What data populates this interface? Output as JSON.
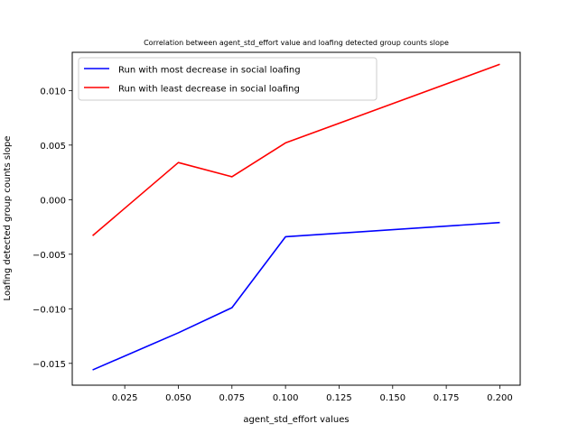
{
  "chart_data": {
    "type": "line",
    "title": "Correlation between agent_std_effort value and loafing detected group counts slope",
    "xlabel": "agent_std_effort values",
    "ylabel": "Loafing detected group counts slope",
    "xlim": [
      0.0005,
      0.2095
    ],
    "ylim": [
      -0.017,
      0.0135
    ],
    "xticks": [
      0.025,
      0.05,
      0.075,
      0.1,
      0.125,
      0.15,
      0.175,
      0.2
    ],
    "xtick_labels": [
      "0.025",
      "0.050",
      "0.075",
      "0.100",
      "0.125",
      "0.150",
      "0.175",
      "0.200"
    ],
    "yticks": [
      -0.015,
      -0.01,
      -0.005,
      0.0,
      0.005,
      0.01
    ],
    "ytick_labels": [
      "−0.015",
      "−0.010",
      "−0.005",
      "0.000",
      "0.005",
      "0.010"
    ],
    "grid": false,
    "legend_position": "upper-left",
    "series": [
      {
        "name": "Run with most decrease in social loafing",
        "color": "#0000ff",
        "x": [
          0.01,
          0.05,
          0.075,
          0.1,
          0.2
        ],
        "y": [
          -0.0156,
          -0.0122,
          -0.0099,
          -0.0034,
          -0.0021
        ]
      },
      {
        "name": "Run with least decrease in social loafing",
        "color": "#ff0000",
        "x": [
          0.01,
          0.05,
          0.075,
          0.1,
          0.2
        ],
        "y": [
          -0.0033,
          0.0034,
          0.0021,
          0.0052,
          0.0124
        ]
      }
    ]
  }
}
